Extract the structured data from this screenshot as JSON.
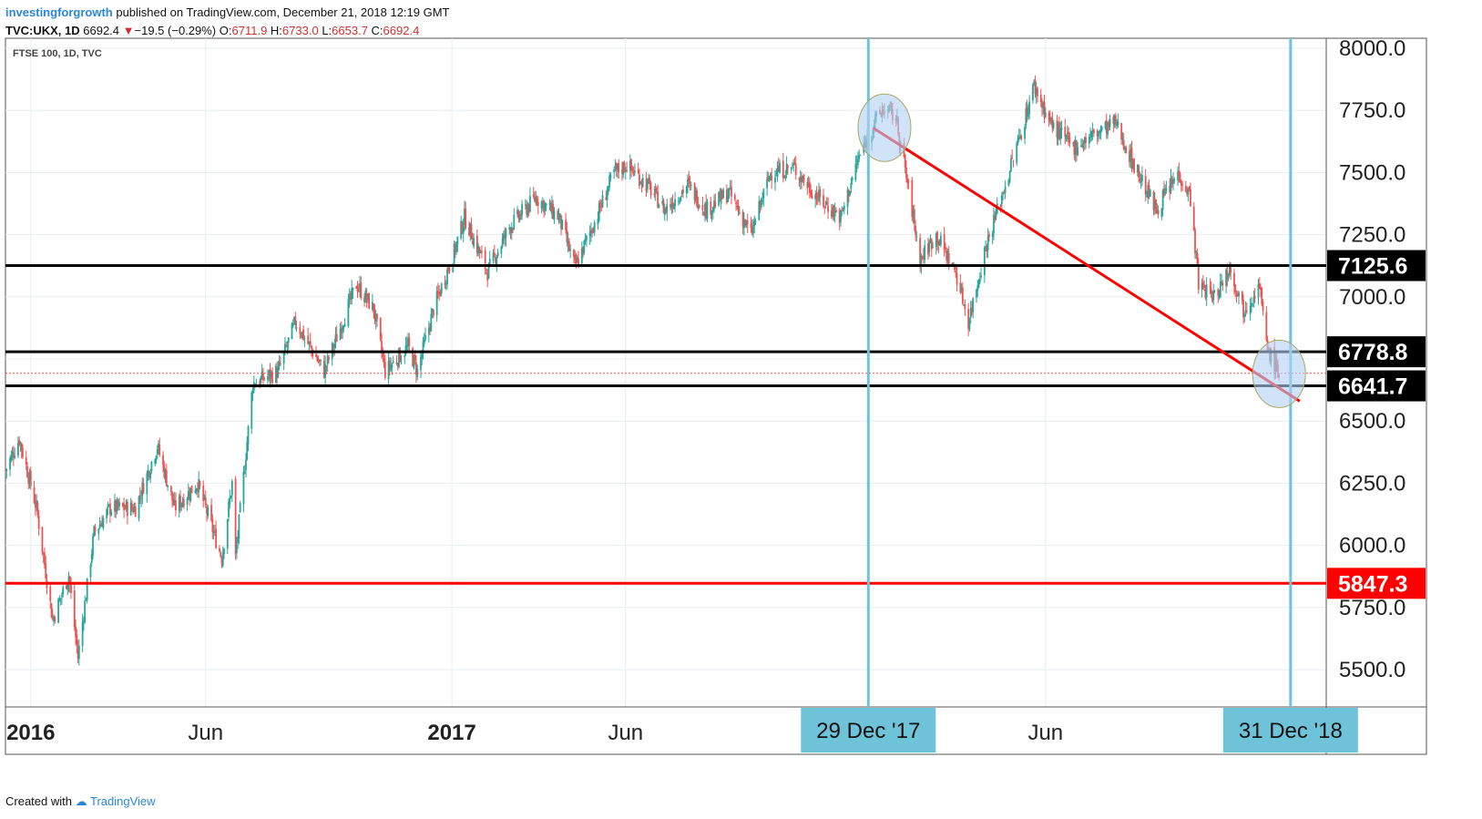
{
  "header": {
    "author": "investingforgrowth",
    "published": "published on TradingView.com, December 21, 2018 12:19 GMT",
    "symbol": "TVC:UKX, 1D",
    "last": "6692.4",
    "change": "−19.5 (−0.29%)",
    "o_label": "O:",
    "o_value": "6711.9",
    "h_label": "H:",
    "h_value": "6733.0",
    "l_label": "L:",
    "l_value": "6653.7",
    "c_label": "C:",
    "c_value": "6692.4"
  },
  "footer": {
    "created": "Created with",
    "brand": "TradingView"
  },
  "colors": {
    "up": "#26a69a",
    "down": "#ef5350",
    "trend": "#ff0000",
    "vline": "#6ec3d9",
    "level": "#000000",
    "support": "#ff0000",
    "ellipse": "#b3d0f5"
  },
  "chart_data": {
    "type": "candlestick",
    "subtitle": "FTSE 100, 1D, TVC",
    "ylim": [
      5350,
      8040
    ],
    "y_ticks": [
      5500,
      5750,
      6000,
      6250,
      6500,
      6750,
      7000,
      7250,
      7500,
      7750,
      8000
    ],
    "y_tick_labels": [
      "5500.0",
      "5750.0",
      "6000.0",
      "6250.0",
      "6500.0",
      "",
      "7000.0",
      "7250.0",
      "7500.0",
      "7750.0",
      "8000.0"
    ],
    "xlim": [
      "2015-12-10",
      "2019-01-31"
    ],
    "x_ticks": [
      {
        "date": "2016-01-01",
        "label": "2016",
        "bold": true
      },
      {
        "date": "2016-06-01",
        "label": "Jun",
        "bold": false
      },
      {
        "date": "2017-01-01",
        "label": "2017",
        "bold": true
      },
      {
        "date": "2017-06-01",
        "label": "Jun",
        "bold": false
      },
      {
        "date": "2018-06-01",
        "label": "Jun",
        "bold": false
      }
    ],
    "hidden_x_grid": [
      "2018-01-01",
      "2018-12-31"
    ],
    "series": [
      {
        "date": "2015-12-10",
        "close": 6300
      },
      {
        "date": "2015-12-22",
        "close": 6430
      },
      {
        "date": "2016-01-06",
        "close": 6150
      },
      {
        "date": "2016-01-20",
        "close": 5700
      },
      {
        "date": "2016-02-03",
        "close": 5880
      },
      {
        "date": "2016-02-11",
        "close": 5550
      },
      {
        "date": "2016-02-25",
        "close": 6050
      },
      {
        "date": "2016-03-10",
        "close": 6150
      },
      {
        "date": "2016-04-01",
        "close": 6150
      },
      {
        "date": "2016-04-20",
        "close": 6400
      },
      {
        "date": "2016-05-05",
        "close": 6150
      },
      {
        "date": "2016-05-25",
        "close": 6250
      },
      {
        "date": "2016-06-15",
        "close": 5950
      },
      {
        "date": "2016-06-24",
        "close": 6250
      },
      {
        "date": "2016-06-27",
        "close": 5950
      },
      {
        "date": "2016-07-12",
        "close": 6650
      },
      {
        "date": "2016-08-03",
        "close": 6700
      },
      {
        "date": "2016-08-18",
        "close": 6900
      },
      {
        "date": "2016-09-12",
        "close": 6700
      },
      {
        "date": "2016-10-10",
        "close": 7050
      },
      {
        "date": "2016-10-25",
        "close": 6950
      },
      {
        "date": "2016-11-04",
        "close": 6700
      },
      {
        "date": "2016-11-24",
        "close": 6800
      },
      {
        "date": "2016-12-02",
        "close": 6700
      },
      {
        "date": "2016-12-16",
        "close": 6950
      },
      {
        "date": "2017-01-03",
        "close": 7180
      },
      {
        "date": "2017-01-12",
        "close": 7320
      },
      {
        "date": "2017-02-01",
        "close": 7100
      },
      {
        "date": "2017-02-20",
        "close": 7280
      },
      {
        "date": "2017-03-15",
        "close": 7400
      },
      {
        "date": "2017-04-04",
        "close": 7320
      },
      {
        "date": "2017-04-18",
        "close": 7120
      },
      {
        "date": "2017-05-05",
        "close": 7300
      },
      {
        "date": "2017-05-22",
        "close": 7500
      },
      {
        "date": "2017-06-02",
        "close": 7530
      },
      {
        "date": "2017-06-20",
        "close": 7450
      },
      {
        "date": "2017-07-05",
        "close": 7350
      },
      {
        "date": "2017-07-25",
        "close": 7450
      },
      {
        "date": "2017-08-10",
        "close": 7350
      },
      {
        "date": "2017-08-30",
        "close": 7420
      },
      {
        "date": "2017-09-18",
        "close": 7250
      },
      {
        "date": "2017-10-05",
        "close": 7500
      },
      {
        "date": "2017-10-25",
        "close": 7520
      },
      {
        "date": "2017-11-15",
        "close": 7400
      },
      {
        "date": "2017-12-05",
        "close": 7320
      },
      {
        "date": "2017-12-20",
        "close": 7550
      },
      {
        "date": "2018-01-03",
        "close": 7700
      },
      {
        "date": "2018-01-12",
        "close": 7760
      },
      {
        "date": "2018-01-22",
        "close": 7720
      },
      {
        "date": "2018-02-05",
        "close": 7350
      },
      {
        "date": "2018-02-12",
        "close": 7150
      },
      {
        "date": "2018-02-26",
        "close": 7250
      },
      {
        "date": "2018-03-15",
        "close": 7100
      },
      {
        "date": "2018-03-26",
        "close": 6900
      },
      {
        "date": "2018-04-10",
        "close": 7200
      },
      {
        "date": "2018-04-25",
        "close": 7420
      },
      {
        "date": "2018-05-10",
        "close": 7650
      },
      {
        "date": "2018-05-22",
        "close": 7850
      },
      {
        "date": "2018-06-05",
        "close": 7700
      },
      {
        "date": "2018-06-25",
        "close": 7600
      },
      {
        "date": "2018-07-12",
        "close": 7650
      },
      {
        "date": "2018-08-01",
        "close": 7700
      },
      {
        "date": "2018-08-15",
        "close": 7550
      },
      {
        "date": "2018-09-05",
        "close": 7350
      },
      {
        "date": "2018-09-25",
        "close": 7500
      },
      {
        "date": "2018-10-05",
        "close": 7400
      },
      {
        "date": "2018-10-12",
        "close": 7050
      },
      {
        "date": "2018-10-26",
        "close": 7000
      },
      {
        "date": "2018-11-08",
        "close": 7120
      },
      {
        "date": "2018-11-20",
        "close": 6950
      },
      {
        "date": "2018-12-04",
        "close": 7050
      },
      {
        "date": "2018-12-10",
        "close": 6800
      },
      {
        "date": "2018-12-21",
        "close": 6692
      }
    ],
    "levels": [
      {
        "value": 7125.6,
        "label": "7125.6",
        "kind": "resistance"
      },
      {
        "value": 6778.8,
        "label": "6778.8",
        "kind": "resistance"
      },
      {
        "value": 6641.7,
        "label": "6641.7",
        "kind": "resistance"
      },
      {
        "value": 5847.3,
        "label": "5847.3",
        "kind": "support"
      }
    ],
    "last_price": 6692.4,
    "trendline": [
      {
        "date": "2018-01-02",
        "value": 7680
      },
      {
        "date": "2019-01-08",
        "value": 6580
      }
    ],
    "vertical_markers": [
      {
        "date": "2017-12-29",
        "label": "29 Dec '17"
      },
      {
        "date": "2018-12-31",
        "label": "31 Dec '18"
      }
    ],
    "highlights": [
      {
        "date": "2018-01-12",
        "value": 7680
      },
      {
        "date": "2018-12-21",
        "value": 6690
      }
    ]
  }
}
